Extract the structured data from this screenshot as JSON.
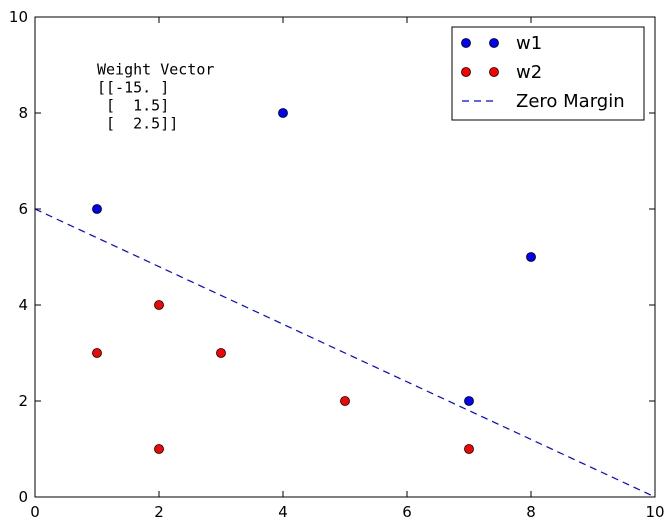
{
  "chart_data": {
    "type": "scatter",
    "title": "",
    "xlabel": "",
    "ylabel": "",
    "xlim": [
      0,
      10
    ],
    "ylim": [
      0,
      10
    ],
    "xticks": [
      "0",
      "2",
      "4",
      "6",
      "8",
      "10"
    ],
    "yticks": [
      "0",
      "2",
      "4",
      "6",
      "8",
      "10"
    ],
    "grid": false,
    "legend_position": "top-right",
    "series": [
      {
        "name": "w1",
        "kind": "points",
        "color": "#0000ff",
        "x": [
          1,
          4,
          8,
          7
        ],
        "y": [
          6,
          8,
          5,
          2
        ]
      },
      {
        "name": "w2",
        "kind": "points",
        "color": "#ff0000",
        "x": [
          1,
          2,
          2,
          3,
          5,
          7
        ],
        "y": [
          3,
          4,
          1,
          3,
          2,
          1
        ]
      },
      {
        "name": "Zero Margin",
        "kind": "dashed-line",
        "color": "#0000ff",
        "x": [
          0,
          10
        ],
        "y": [
          6,
          0
        ]
      }
    ],
    "annotation": {
      "lines": [
        "Weight Vector",
        "[[-15. ]",
        " [  1.5]",
        " [  2.5]]"
      ],
      "x": 1,
      "y": 8.8
    }
  }
}
